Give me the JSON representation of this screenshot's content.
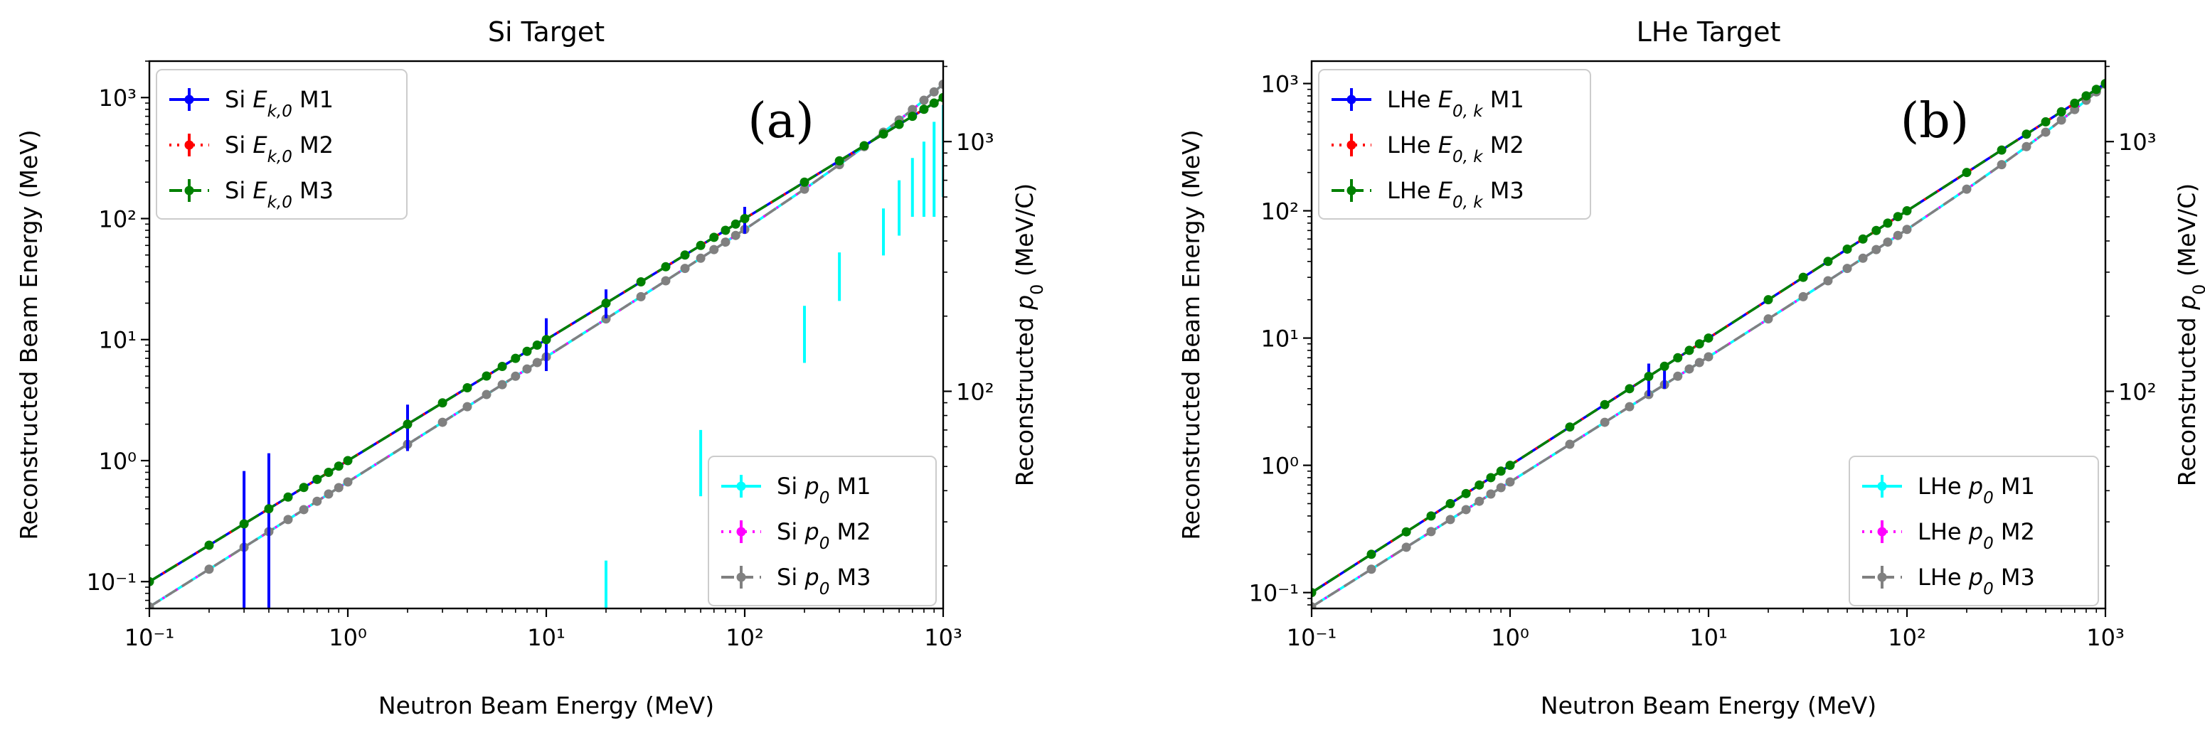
{
  "chart_data": [
    {
      "type": "line",
      "title": "Si Target",
      "panel_label": "(a)",
      "xlabel": "Neutron Beam Energy (MeV)",
      "ylabel": "Reconstructed Beam Energy (MeV)",
      "y2label": "Reconstructed p₀ (MeV/C)",
      "xscale": "log",
      "yscale": "log",
      "y2scale": "log",
      "xlim": [
        0.1,
        1000
      ],
      "ylim": [
        0.06,
        2000
      ],
      "y2lim": [
        13.5,
        2100
      ],
      "x_ticks": [
        "10⁻¹",
        "10⁰",
        "10¹",
        "10²",
        "10³"
      ],
      "y_ticks": [
        "10⁻¹",
        "10⁰",
        "10¹",
        "10²",
        "10³"
      ],
      "y2_ticks": [
        "10²",
        "10³"
      ],
      "x": [
        0.1,
        0.2,
        0.3,
        0.4,
        0.5,
        0.6,
        0.7,
        0.8,
        0.9,
        1,
        2,
        3,
        4,
        5,
        6,
        7,
        8,
        9,
        10,
        20,
        30,
        40,
        50,
        60,
        70,
        80,
        90,
        100,
        200,
        300,
        400,
        500,
        600,
        700,
        800,
        900,
        1000
      ],
      "energy_series": [
        {
          "name": "Si E_k,0 M1",
          "color": "#0000ff",
          "style": "solid",
          "values": "y = x",
          "errors": [
            {
              "x": 0.3,
              "y_low": 0.06,
              "y_high": 0.82
            },
            {
              "x": 0.4,
              "y_low": 0.06,
              "y_high": 1.15
            },
            {
              "x": 2,
              "y_low": 1.2,
              "y_high": 2.9
            },
            {
              "x": 10,
              "y_low": 5.5,
              "y_high": 15
            },
            {
              "x": 20,
              "y_low": 15,
              "y_high": 26
            },
            {
              "x": 100,
              "y_low": 75,
              "y_high": 125
            }
          ]
        },
        {
          "name": "Si E_k,0 M2",
          "color": "#ff0000",
          "style": "dotted",
          "values": "y = x"
        },
        {
          "name": "Si E_k,0 M3",
          "color": "#008000",
          "style": "dashed",
          "values": "y = x"
        }
      ],
      "momentum_series": [
        {
          "name": "Si p₀ M1",
          "color": "#00ffff",
          "style": "solid",
          "values": "p = sqrt(x² + 2·939.565·x)",
          "errors": [
            {
              "x": 20,
              "y_low": 13,
              "y_high": 21
            },
            {
              "x": 60,
              "y_low": 38,
              "y_high": 70
            },
            {
              "x": 200,
              "y_low": 130,
              "y_high": 220
            },
            {
              "x": 300,
              "y_low": 230,
              "y_high": 360
            },
            {
              "x": 500,
              "y_low": 350,
              "y_high": 540
            },
            {
              "x": 600,
              "y_low": 420,
              "y_high": 700
            },
            {
              "x": 700,
              "y_low": 500,
              "y_high": 860
            },
            {
              "x": 800,
              "y_low": 500,
              "y_high": 1000
            },
            {
              "x": 900,
              "y_low": 500,
              "y_high": 1200
            },
            {
              "x": 1000,
              "y_low": 600,
              "y_high": 1400
            }
          ]
        },
        {
          "name": "Si p₀ M2",
          "color": "#ff00ff",
          "style": "dotted",
          "values": "p = sqrt(x² + 2·939.565·x)"
        },
        {
          "name": "Si p₀ M3",
          "color": "#808080",
          "style": "dashed",
          "values": "p = sqrt(x² + 2·939.565·x)"
        }
      ],
      "legend": [
        "top-left",
        "bottom-right"
      ],
      "grid": false
    },
    {
      "type": "line",
      "title": "LHe Target",
      "panel_label": "(b)",
      "xlabel": "Neutron Beam Energy (MeV)",
      "ylabel": "Reconstructed Beam Energy (MeV)",
      "y2label": "Reconstructed p₀ (MeV/C)",
      "xscale": "log",
      "yscale": "log",
      "y2scale": "log",
      "xlim": [
        0.1,
        1000
      ],
      "ylim": [
        0.075,
        1500
      ],
      "y2lim": [
        13.5,
        2100
      ],
      "x_ticks": [
        "10⁻¹",
        "10⁰",
        "10¹",
        "10²",
        "10³"
      ],
      "y_ticks": [
        "10⁻¹",
        "10⁰",
        "10¹",
        "10²",
        "10³"
      ],
      "y2_ticks": [
        "10²",
        "10³"
      ],
      "x": [
        0.1,
        0.2,
        0.3,
        0.4,
        0.5,
        0.6,
        0.7,
        0.8,
        0.9,
        1,
        2,
        3,
        4,
        5,
        6,
        7,
        8,
        9,
        10,
        20,
        30,
        40,
        50,
        60,
        70,
        80,
        90,
        100,
        200,
        300,
        400,
        500,
        600,
        700,
        800,
        900,
        1000
      ],
      "energy_series": [
        {
          "name": "LHe E_0,k M1",
          "color": "#0000ff",
          "style": "solid",
          "values": "y = x",
          "errors": [
            {
              "x": 5,
              "y_low": 3.5,
              "y_high": 6.3
            },
            {
              "x": 6,
              "y_low": 4.0,
              "y_high": 6.5
            }
          ]
        },
        {
          "name": "LHe E_0,k M2",
          "color": "#ff0000",
          "style": "dotted",
          "values": "y = x"
        },
        {
          "name": "LHe E_0,k M3",
          "color": "#008000",
          "style": "dashed",
          "values": "y = x"
        }
      ],
      "momentum_series": [
        {
          "name": "LHe p₀ M1",
          "color": "#00ffff",
          "style": "solid",
          "values": "p = sqrt(x² + 2·939.565·x)"
        },
        {
          "name": "LHe p₀ M2",
          "color": "#ff00ff",
          "style": "dotted",
          "values": "p = sqrt(x² + 2·939.565·x)"
        },
        {
          "name": "LHe p₀ M3",
          "color": "#808080",
          "style": "dashed",
          "values": "p = sqrt(x² + 2·939.565·x)"
        }
      ],
      "legend": [
        "top-left",
        "bottom-right"
      ],
      "grid": false
    }
  ],
  "legends": [
    {
      "energy": [
        {
          "prefix": "Si ",
          "var": "E",
          "sub": "k,0",
          "suffix": " M1"
        },
        {
          "prefix": "Si ",
          "var": "E",
          "sub": "k,0",
          "suffix": " M2"
        },
        {
          "prefix": "Si ",
          "var": "E",
          "sub": "k,0",
          "suffix": " M3"
        }
      ],
      "momentum": [
        {
          "prefix": "Si ",
          "var": "p",
          "sub": "0",
          "suffix": " M1"
        },
        {
          "prefix": "Si ",
          "var": "p",
          "sub": "0",
          "suffix": " M2"
        },
        {
          "prefix": "Si ",
          "var": "p",
          "sub": "0",
          "suffix": " M3"
        }
      ]
    },
    {
      "energy": [
        {
          "prefix": "LHe ",
          "var": "E",
          "sub": "0, k",
          "suffix": " M1"
        },
        {
          "prefix": "LHe ",
          "var": "E",
          "sub": "0, k",
          "suffix": " M2"
        },
        {
          "prefix": "LHe ",
          "var": "E",
          "sub": "0, k",
          "suffix": " M3"
        }
      ],
      "momentum": [
        {
          "prefix": "LHe ",
          "var": "p",
          "sub": "0",
          "suffix": " M1"
        },
        {
          "prefix": "LHe ",
          "var": "p",
          "sub": "0",
          "suffix": " M2"
        },
        {
          "prefix": "LHe ",
          "var": "p",
          "sub": "0",
          "suffix": " M3"
        }
      ]
    }
  ],
  "y2label_parts": {
    "prefix": "Reconstructed ",
    "var": "p",
    "sub": "0",
    "suffix": " (MeV/C)"
  }
}
